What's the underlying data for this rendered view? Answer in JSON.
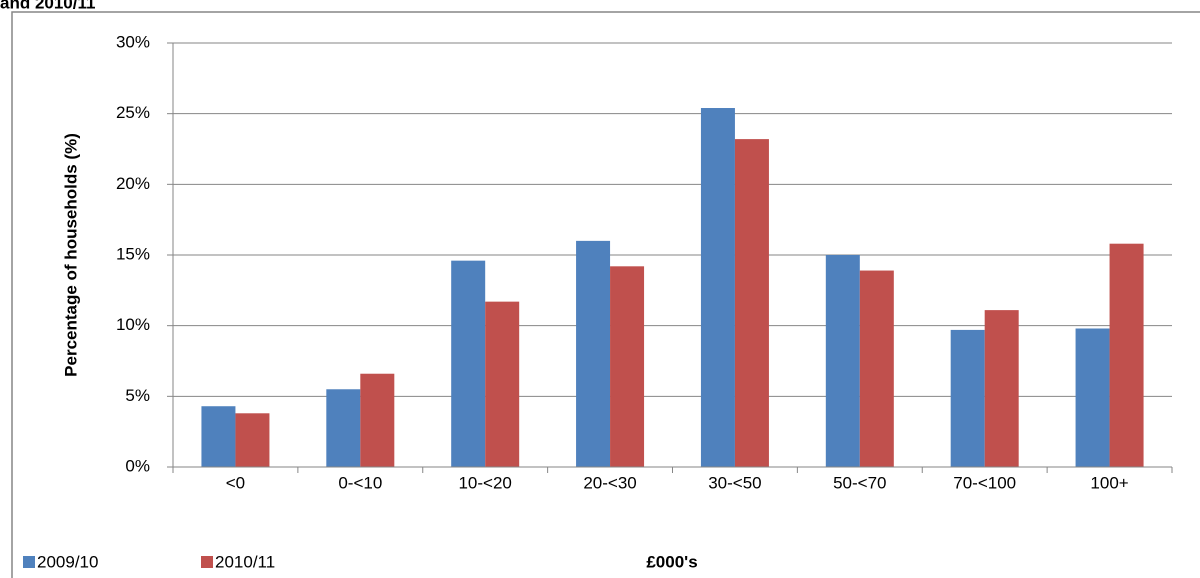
{
  "chart_data": {
    "type": "bar",
    "title": "and 2010/11",
    "y_label": "Percentage of households (%)",
    "x_label": "£000's",
    "categories": [
      "<0",
      "0-<10",
      "10-<20",
      "20-<30",
      "30-<50",
      "50-<70",
      "70-<100",
      "100+"
    ],
    "series": [
      {
        "name": "2009/10",
        "color": "#4f81bd",
        "values": [
          4.3,
          5.5,
          14.6,
          16.0,
          25.4,
          15.0,
          9.7,
          9.8
        ]
      },
      {
        "name": "2010/11",
        "color": "#c0504d",
        "values": [
          3.8,
          6.6,
          11.7,
          14.2,
          23.2,
          13.9,
          11.1,
          15.8
        ]
      }
    ],
    "ylim": [
      0,
      30
    ],
    "yticks": [
      {
        "value": 0,
        "label": "0%"
      },
      {
        "value": 5,
        "label": "5%"
      },
      {
        "value": 10,
        "label": "10%"
      },
      {
        "value": 15,
        "label": "15%"
      },
      {
        "value": 20,
        "label": "20%"
      },
      {
        "value": 25,
        "label": "25%"
      },
      {
        "value": 30,
        "label": "30%"
      }
    ],
    "grid": true,
    "legend": "bottom-left"
  }
}
